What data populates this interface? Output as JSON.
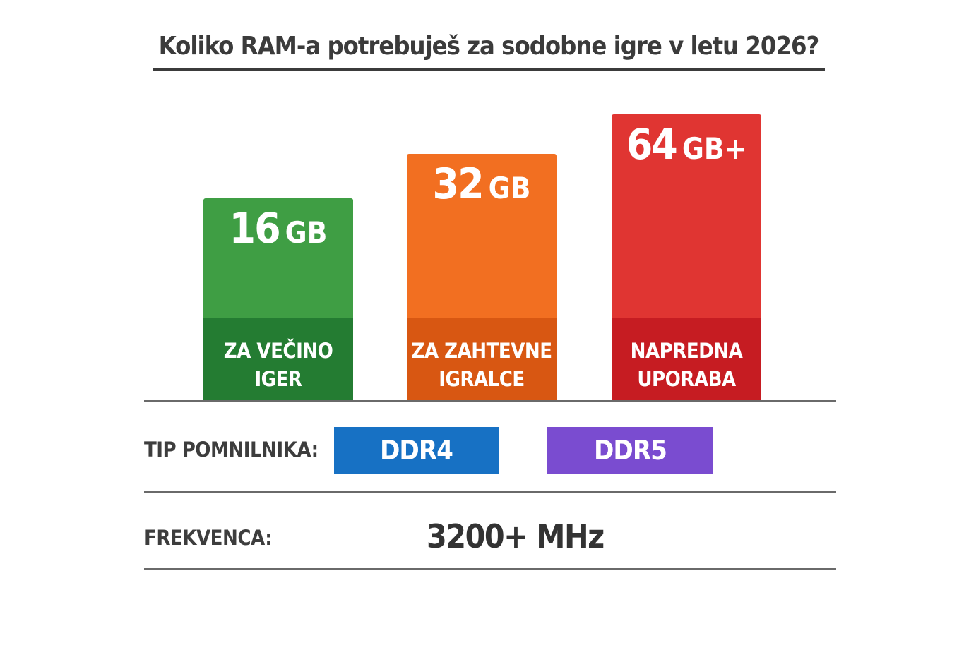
{
  "title": "Koliko RAM-a potrebuješ za sodobne igre v letu 2026?",
  "chart_data": {
    "type": "bar",
    "title": "Koliko RAM-a potrebuješ za sodobne igre v letu 2026?",
    "categories": [
      "ZA VEČINO IGER",
      "ZA ZAHTEVNE IGRALCE",
      "NAPREDNA UPORABA"
    ],
    "values": [
      16,
      32,
      64
    ],
    "bars": [
      {
        "number": "16",
        "unit": "GB",
        "label_lines": [
          "ZA VEČINO",
          "IGER"
        ],
        "color": "#3f9e44",
        "band_color": "#247c32"
      },
      {
        "number": "32",
        "unit": "GB",
        "label_lines": [
          "ZA ZAHTEVNE",
          "IGRALCE"
        ],
        "color": "#f26f21",
        "band_color": "#d85712"
      },
      {
        "number": "64",
        "unit": "GB+",
        "label_lines": [
          "NAPREDNA",
          "UPORABA"
        ],
        "color": "#e03532",
        "band_color": "#c61c22"
      }
    ]
  },
  "memory_type": {
    "label": "TIP POMNILNIKA:",
    "options": [
      {
        "text": "DDR4",
        "color": "#1771c4"
      },
      {
        "text": "DDR5",
        "color": "#7a4cd0"
      }
    ]
  },
  "frequency": {
    "label": "FREKVENCA:",
    "value": "3200+ MHz"
  }
}
